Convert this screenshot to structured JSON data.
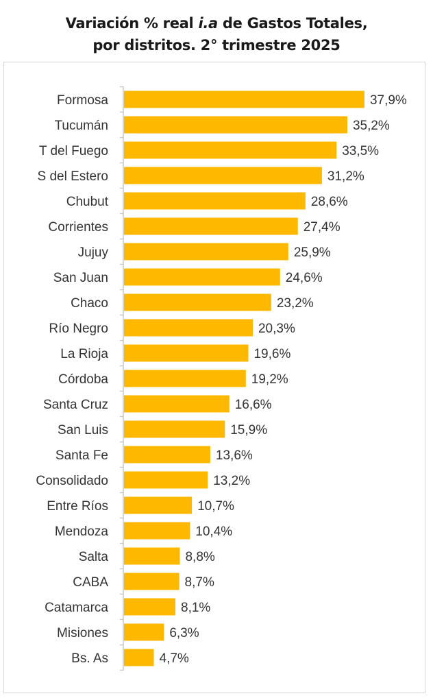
{
  "chart_data": {
    "type": "bar",
    "orientation": "horizontal",
    "title": {
      "line1_pre": "Variación % real ",
      "line1_italic": "i.a",
      "line1_post": " de Gastos Totales,",
      "line2": "por distritos. 2° trimestre 2025"
    },
    "categories": [
      "Formosa",
      "Tucumán",
      "T del Fuego",
      "S del Estero",
      "Chubut",
      "Corrientes",
      "Jujuy",
      "San Juan",
      "Chaco",
      "Río Negro",
      "La Rioja",
      "Córdoba",
      "Santa Cruz",
      "San Luis",
      "Santa Fe",
      "Consolidado",
      "Entre Ríos",
      "Mendoza",
      "Salta",
      "CABA",
      "Catamarca",
      "Misiones",
      "Bs. As"
    ],
    "values": [
      37.9,
      35.2,
      33.5,
      31.2,
      28.6,
      27.4,
      25.9,
      24.6,
      23.2,
      20.3,
      19.6,
      19.2,
      16.6,
      15.9,
      13.6,
      13.2,
      10.7,
      10.4,
      8.8,
      8.7,
      8.1,
      6.3,
      4.7
    ],
    "data_labels": [
      "37,9%",
      "35,2%",
      "33,5%",
      "31,2%",
      "28,6%",
      "27,4%",
      "25,9%",
      "24,6%",
      "23,2%",
      "20,3%",
      "19,6%",
      "19,2%",
      "16,6%",
      "15,9%",
      "13,6%",
      "13,2%",
      "10,7%",
      "10,4%",
      "8,8%",
      "8,7%",
      "8,1%",
      "6,3%",
      "4,7%"
    ],
    "unit": "%",
    "xlim": [
      0,
      40
    ],
    "grid": false,
    "legend": "none",
    "bar_color": "#FFB800",
    "axis_color": "#c8c8c8"
  }
}
